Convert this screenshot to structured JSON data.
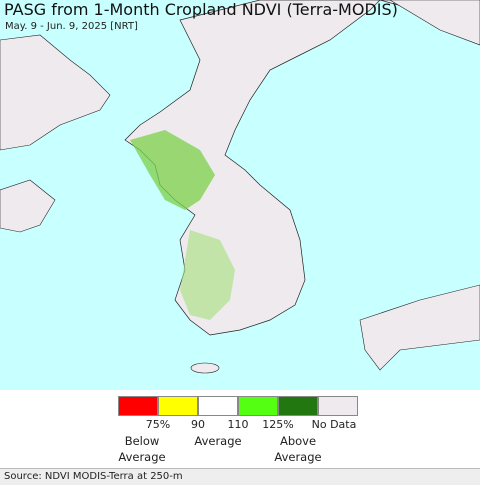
{
  "header": {
    "title": "PASG from 1-Month Cropland NDVI (Terra-MODIS)",
    "subtitle": "May. 9 - Jun. 9, 2025 [NRT]"
  },
  "legend": {
    "colors": [
      "#ff0000",
      "#ffff00",
      "#ffffff",
      "#55ff11",
      "#227711",
      "#eeeaee"
    ],
    "ticks": [
      "75%",
      "90",
      "110",
      "125%",
      "No Data"
    ],
    "labels": [
      "Below Average",
      "Average",
      "Above Average"
    ]
  },
  "footer": {
    "source": "Source: NDVI MODIS-Terra at 250-m"
  }
}
